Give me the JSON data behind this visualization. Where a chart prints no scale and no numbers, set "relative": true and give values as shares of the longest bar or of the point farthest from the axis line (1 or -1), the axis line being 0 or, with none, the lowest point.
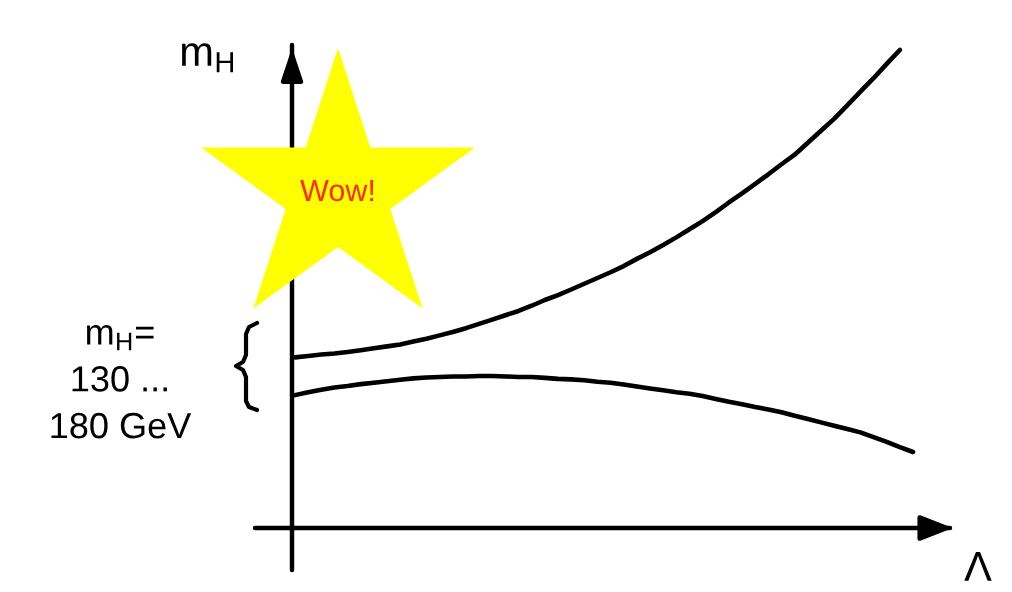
{
  "chart_data": {
    "type": "line",
    "relative": true,
    "xlabel": "Λ",
    "ylabel": "m$_{H}$",
    "annotations": [
      "Wow!",
      "m$_{H}$=\n130 ...\n180 GeV"
    ],
    "categories": [
      null,
      null,
      null,
      null,
      null,
      null,
      null,
      null,
      null,
      null,
      null,
      null,
      null,
      null,
      null,
      null,
      null,
      null,
      null,
      null,
      null,
      null,
      null,
      null,
      null,
      null,
      null,
      null,
      null,
      null,
      null,
      null,
      null,
      null,
      null,
      null,
      null,
      null,
      null,
      null,
      null,
      null,
      null,
      null,
      null,
      null,
      null,
      null
    ],
    "series": [
      {
        "color": "#000000",
        "values": [
          0.357,
          0.36,
          0.363,
          0.365,
          0.368,
          0.372,
          0.376,
          0.38,
          0.384,
          0.39,
          0.396,
          0.403,
          0.41,
          0.418,
          0.427,
          0.436,
          0.445,
          0.454,
          0.465,
          0.477,
          0.487,
          0.499,
          0.511,
          0.523,
          0.535,
          0.548,
          0.563,
          0.577,
          0.592,
          0.608,
          0.625,
          0.642,
          0.661,
          0.681,
          0.7,
          0.72,
          0.74,
          0.761,
          0.781,
          0.806,
          0.831,
          0.856,
          0.884,
          0.913,
          0.941,
          0.971,
          1.0,
          null
        ]
      },
      {
        "color": "#000000",
        "values": [
          0.278,
          0.284,
          0.289,
          0.294,
          0.297,
          0.301,
          0.304,
          0.307,
          0.31,
          0.313,
          0.315,
          0.316,
          0.317,
          0.317,
          0.318,
          0.318,
          0.317,
          0.316,
          0.316,
          0.314,
          0.312,
          0.311,
          0.309,
          0.306,
          0.304,
          0.3,
          0.296,
          0.292,
          0.288,
          0.284,
          0.281,
          0.276,
          0.27,
          0.264,
          0.259,
          0.253,
          0.248,
          0.242,
          0.235,
          0.228,
          0.221,
          0.214,
          0.207,
          0.2,
          0.19,
          0.18,
          0.169,
          0.159
        ]
      }
    ]
  }
}
